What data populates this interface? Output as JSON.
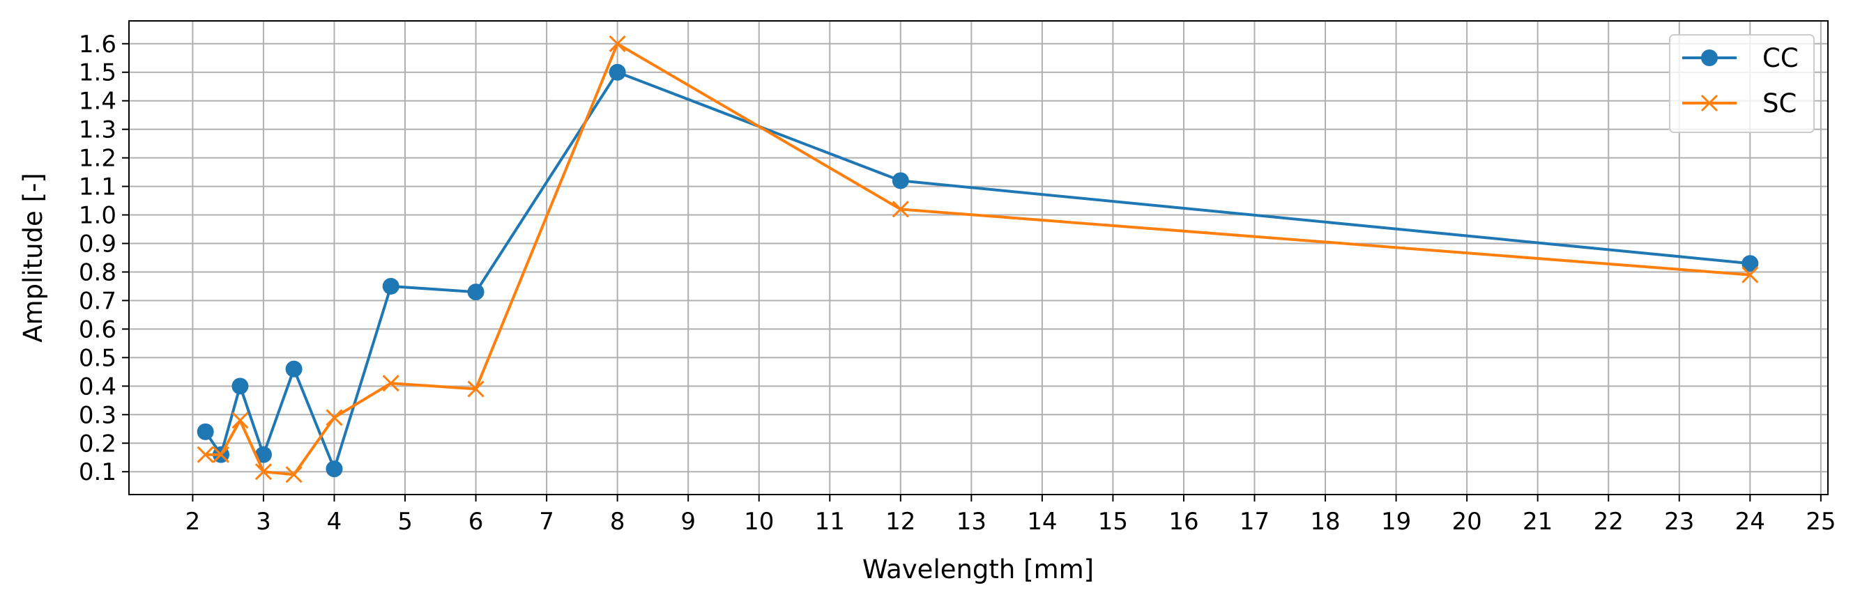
{
  "chart_data": {
    "type": "line",
    "xlabel": "Wavelength [mm]",
    "ylabel": "Amplitude [-]",
    "xlim": [
      1.1,
      25.1
    ],
    "ylim": [
      0.02,
      1.68
    ],
    "xticks": [
      2,
      3,
      4,
      5,
      6,
      7,
      8,
      9,
      10,
      11,
      12,
      13,
      14,
      15,
      16,
      17,
      18,
      19,
      20,
      21,
      22,
      23,
      24,
      25
    ],
    "yticks": [
      0.1,
      0.2,
      0.3,
      0.4,
      0.5,
      0.6,
      0.7,
      0.8,
      0.9,
      1.0,
      1.1,
      1.2,
      1.3,
      1.4,
      1.5,
      1.6
    ],
    "grid": true,
    "legend_position": "top-right",
    "x": [
      2.18,
      2.4,
      2.67,
      3.0,
      3.43,
      4.0,
      4.8,
      6.0,
      8.0,
      12.0,
      24.0
    ],
    "series": [
      {
        "name": "CC",
        "marker": "circle",
        "color": "#1f77b4",
        "values": [
          0.24,
          0.16,
          0.4,
          0.16,
          0.46,
          0.11,
          0.75,
          0.73,
          1.5,
          1.12,
          0.83
        ]
      },
      {
        "name": "SC",
        "marker": "x",
        "color": "#ff7f0e",
        "values": [
          0.16,
          0.16,
          0.28,
          0.1,
          0.09,
          0.29,
          0.41,
          0.39,
          1.6,
          1.02,
          0.79
        ]
      }
    ]
  }
}
